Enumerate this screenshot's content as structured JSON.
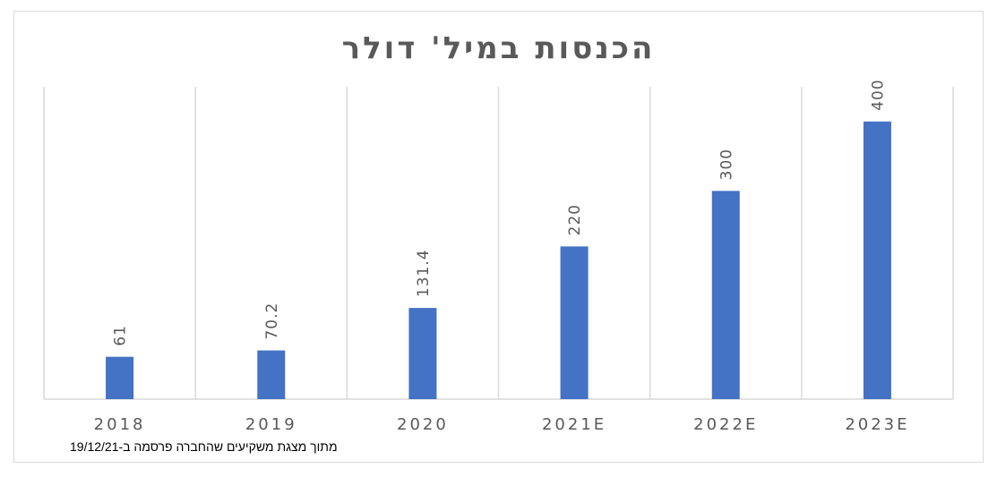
{
  "chart_data": {
    "type": "bar",
    "title": "הכנסות במיל' דולר",
    "categories": [
      "2018",
      "2019",
      "2020",
      "2021E",
      "2022E",
      "2023E"
    ],
    "values": [
      61,
      70.2,
      131.4,
      220,
      300,
      400
    ],
    "data_labels": [
      "61",
      "70.2",
      "131.4",
      "220",
      "300",
      "400"
    ],
    "ylim": [
      0,
      450
    ],
    "grid": "vertical",
    "bar_color": "#4472c4",
    "gridline_color": "#d9d9d9",
    "text_color": "#595959"
  },
  "source_note": "מתוך מצגת משקיעים שהחברה פרסמה ב-19/12/21"
}
